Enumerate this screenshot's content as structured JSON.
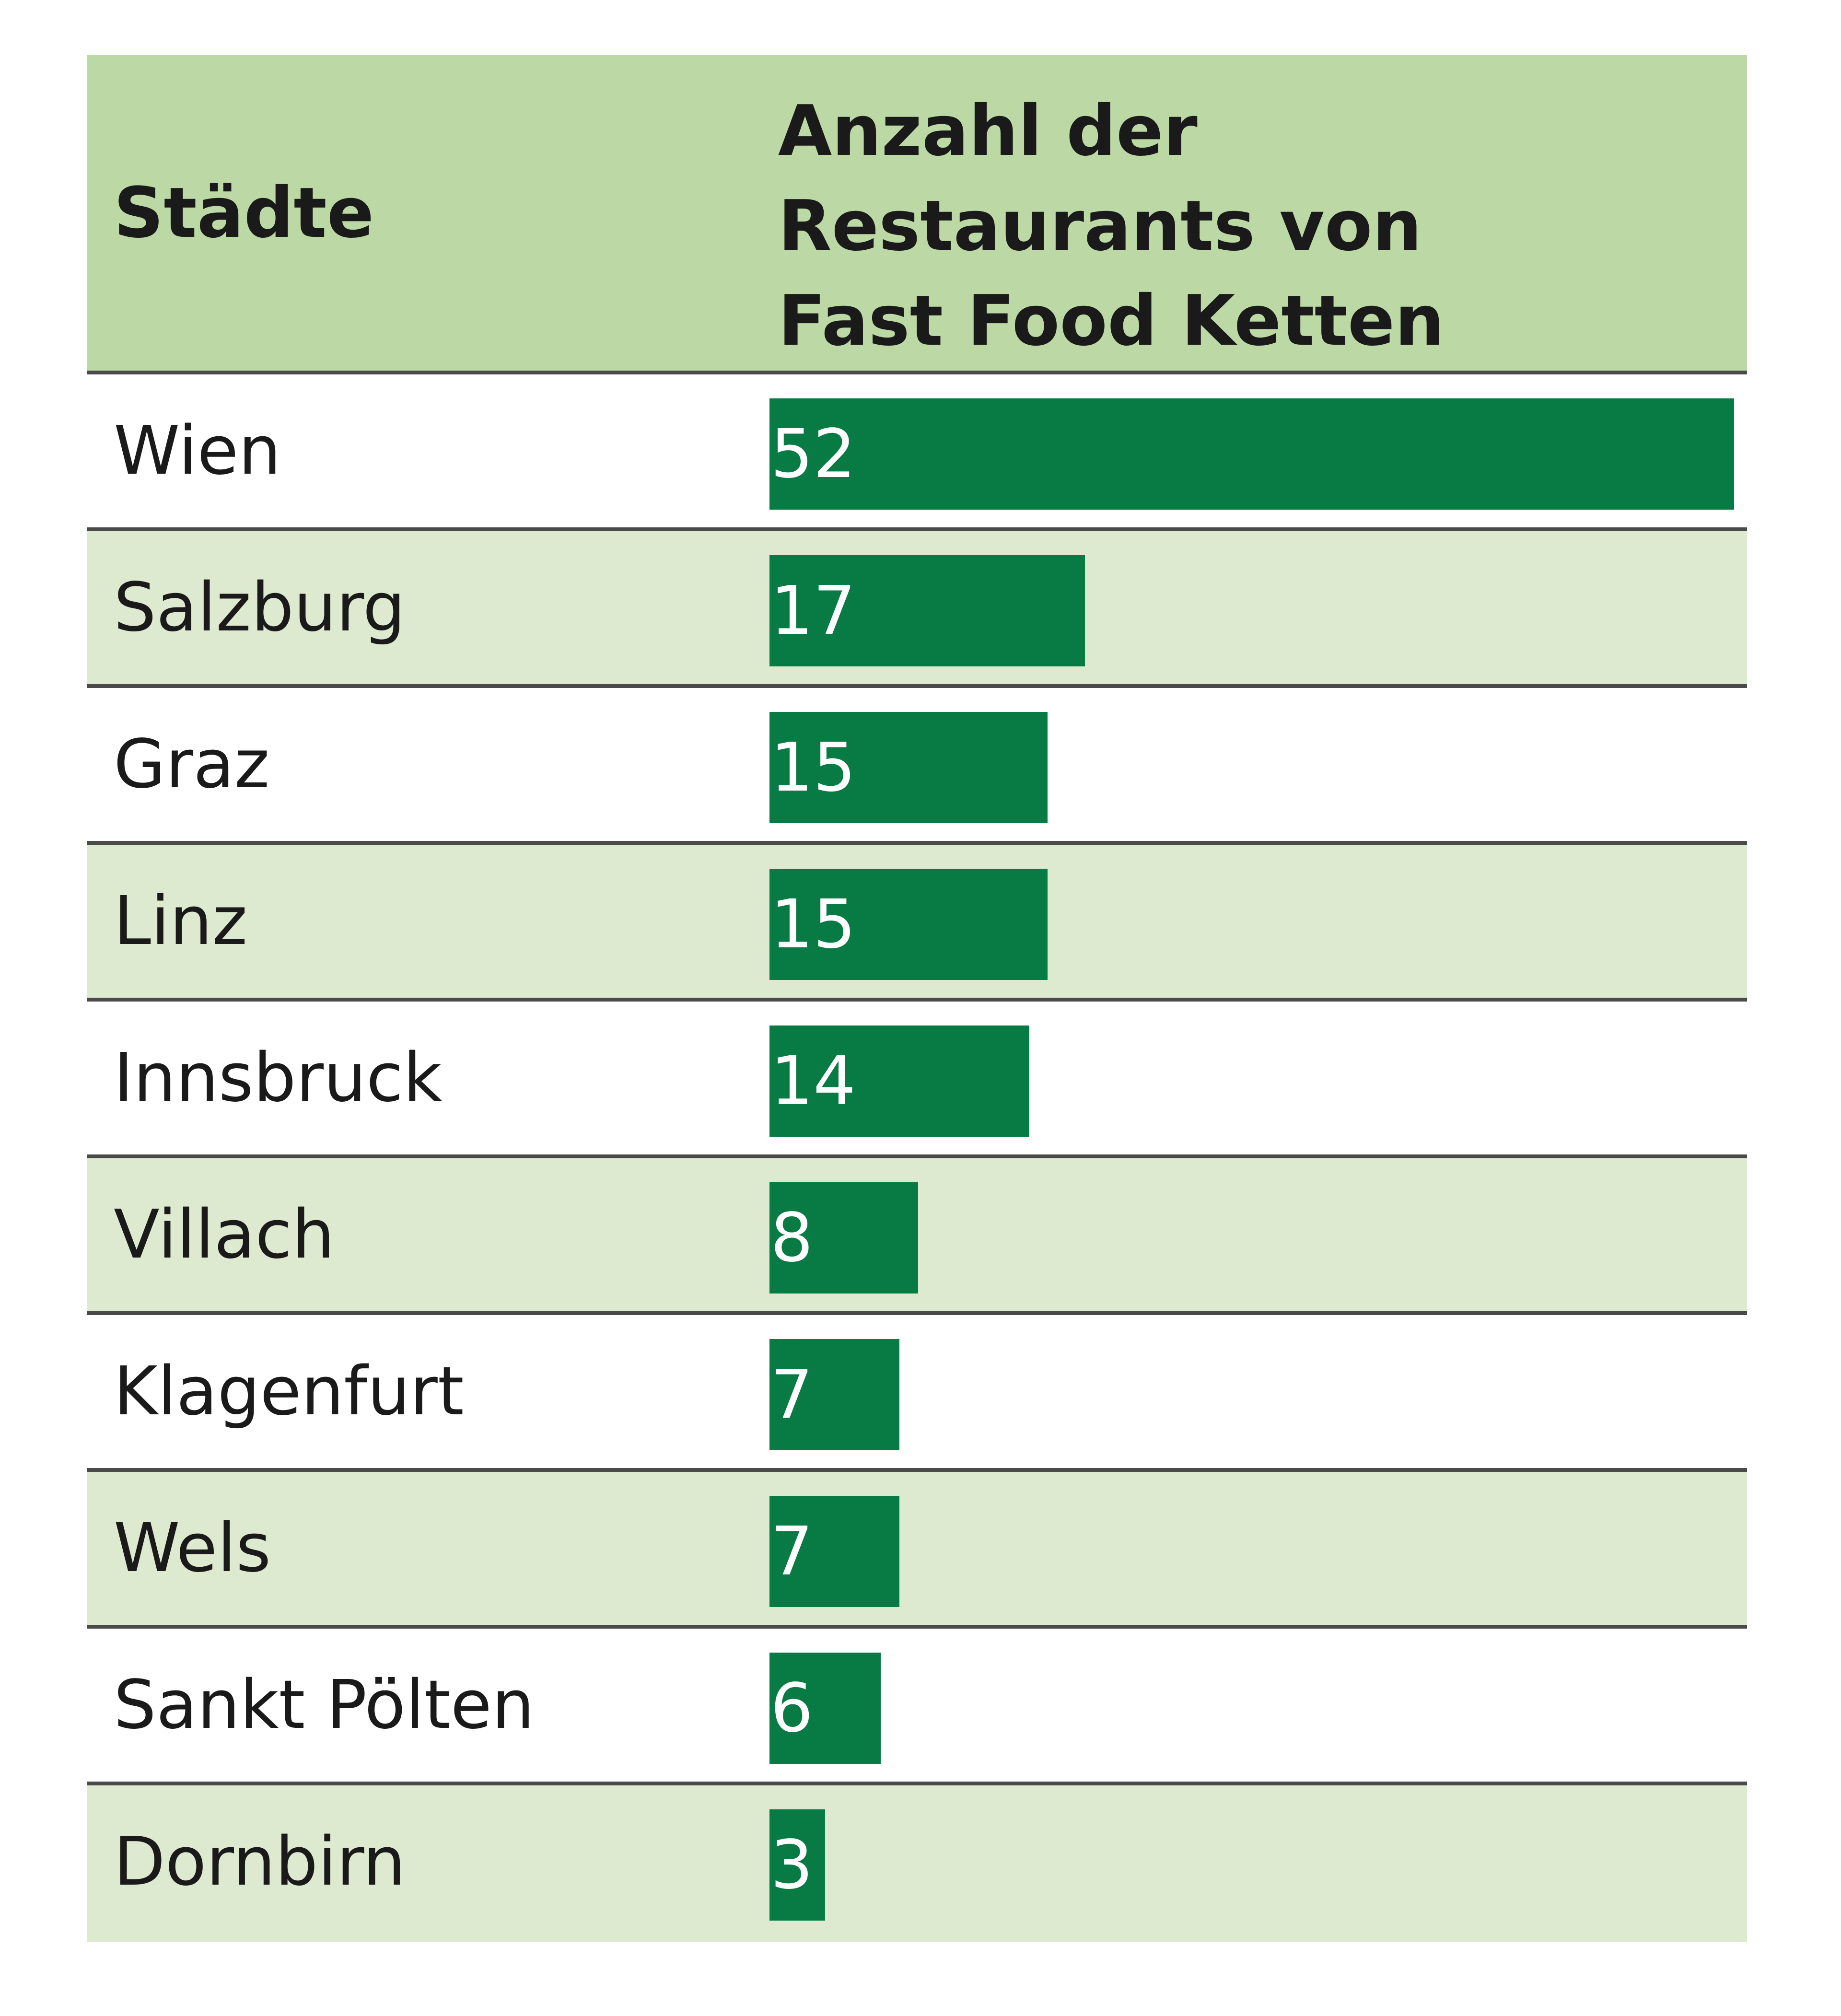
{
  "chart_data": {
    "type": "bar",
    "orientation": "horizontal",
    "header": {
      "category_label": "Städte",
      "value_label_lines": [
        "Anzahl der",
        "Restaurants von",
        "Fast Food Ketten"
      ]
    },
    "categories": [
      "Wien",
      "Salzburg",
      "Graz",
      "Linz",
      "Innsbruck",
      "Villach",
      "Klagenfurt",
      "Wels",
      "Sankt Pölten",
      "Dornbirn"
    ],
    "values": [
      52,
      17,
      15,
      15,
      14,
      8,
      7,
      7,
      6,
      3
    ],
    "xlim": [
      0,
      52
    ]
  },
  "colors": {
    "header_bg": "#bcd9a5",
    "row_shade": "#deead0",
    "bar": "#087a44",
    "divider": "#4a4a4a"
  }
}
